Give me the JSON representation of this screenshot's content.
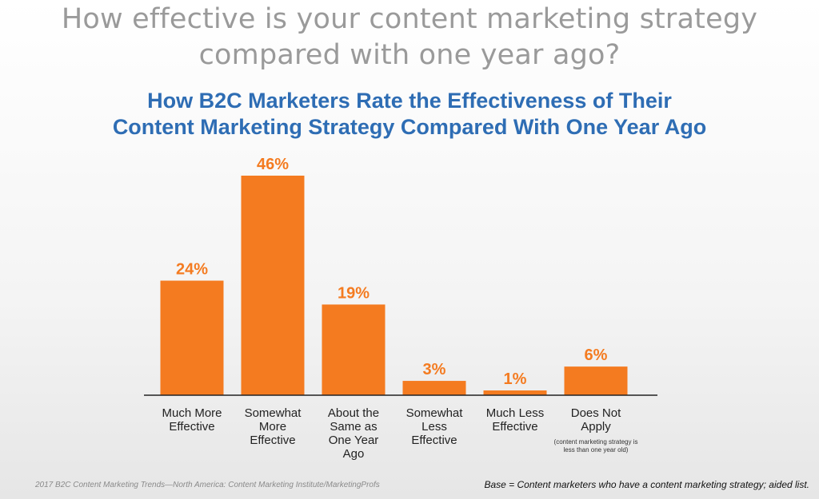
{
  "headline": {
    "line1": "How effective is your content marketing strategy",
    "line2": "compared with one year ago?"
  },
  "chart_data": {
    "type": "bar",
    "title": "How B2C Marketers Rate the Effectiveness of Their",
    "title_line2": "Content Marketing Strategy Compared With One Year Ago",
    "categories": [
      [
        "Much More",
        "Effective"
      ],
      [
        "Somewhat",
        "More",
        "Effective"
      ],
      [
        "About the",
        "Same as",
        "One Year",
        "Ago"
      ],
      [
        "Somewhat",
        "Less",
        "Effective"
      ],
      [
        "Much Less",
        "Effective"
      ],
      [
        "Does Not",
        "Apply"
      ]
    ],
    "category_notes": [
      "",
      "",
      "",
      "",
      "",
      "(content marketing strategy is less than one year old)"
    ],
    "values": [
      24,
      46,
      19,
      3,
      1,
      6
    ],
    "value_labels": [
      "24%",
      "46%",
      "19%",
      "3%",
      "1%",
      "6%"
    ],
    "ylim": [
      0,
      46
    ],
    "grid": false,
    "bar_color": "#f47b20",
    "title_color": "#2e6db4"
  },
  "footer": {
    "source": "2017 B2C Content Marketing Trends—North America: Content Marketing Institute/MarketingProfs",
    "base": "Base = Content marketers who have a content marketing strategy; aided list."
  }
}
